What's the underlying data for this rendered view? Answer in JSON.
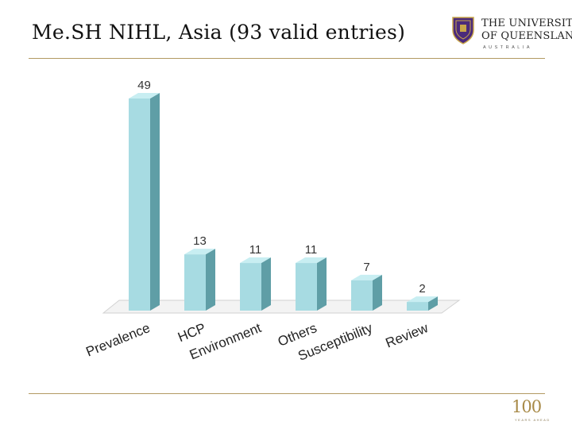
{
  "slide": {
    "title": "Me.SH  NIHL, Asia (93 valid entries)"
  },
  "logo": {
    "line1": "THE UNIVERSITY",
    "line2": "OF QUEENSLAND",
    "line3": "AUSTRALIA",
    "crest_icon": "university-crest-icon",
    "colors": {
      "shield": "#4b2a7b",
      "gold": "#c9a64a"
    }
  },
  "centenary": {
    "number": "100",
    "caption": "YEARS AHEAD"
  },
  "chart_data": {
    "type": "bar",
    "categories": [
      "Prevalence",
      "HCP",
      "Environment",
      "Others",
      "Susceptibility",
      "Review"
    ],
    "values": [
      49,
      13,
      11,
      11,
      7,
      2
    ],
    "data_labels": [
      "49",
      "13",
      "11",
      "11",
      "7",
      "2"
    ],
    "title": "",
    "xlabel": "",
    "ylabel": "",
    "ylim": [
      0,
      49
    ],
    "grid": false,
    "legend": "none",
    "style": "3d",
    "colors": {
      "bar_front": "#a7dbe2",
      "bar_side": "#5f9ea6",
      "bar_top": "#c8eef2",
      "floor": "#f3f3f3"
    }
  }
}
